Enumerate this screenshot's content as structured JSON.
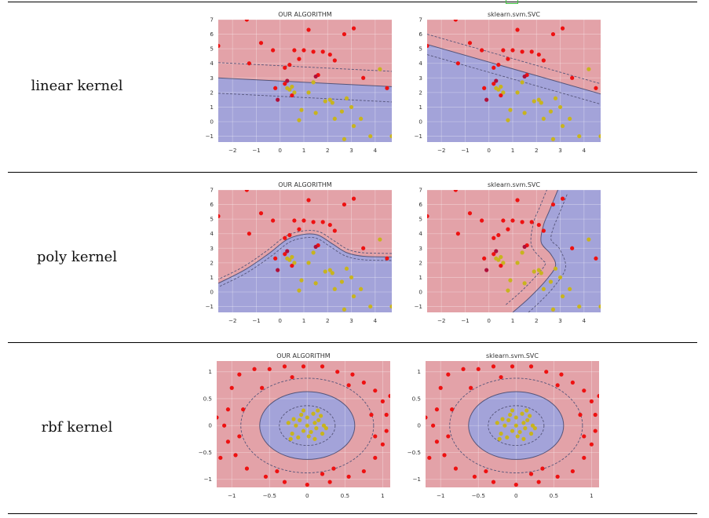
{
  "rows": [
    {
      "label": "linear kernel"
    },
    {
      "label": "poly kernel"
    },
    {
      "label": "rbf kernel"
    }
  ],
  "colors": {
    "red_region": "#e3a2a8",
    "blue_region": "#a3a3d9",
    "red_point": "#ee1111",
    "yellow_point": "#c8b41e",
    "dark_point": "#b0103a",
    "grid": "#ffffff",
    "boundary": "#55557a"
  },
  "chart_data": [
    {
      "type": "scatter",
      "row": "linear kernel",
      "title": "OUR ALGORITHM",
      "kernel": "linear",
      "xlim": [
        -2.6,
        4.7
      ],
      "ylim": [
        -1.4,
        7
      ],
      "xticks": [
        -2,
        -1,
        0,
        1,
        2,
        3,
        4
      ],
      "yticks": [
        -1,
        0,
        1,
        2,
        3,
        4,
        5,
        6,
        7
      ],
      "decision_boundary": {
        "y_at_xmin": 3.0,
        "y_at_xmax": 2.4,
        "margin": 1.05
      }
    },
    {
      "type": "scatter",
      "row": "linear kernel",
      "title": "sklearn.svm.SVC",
      "kernel": "linear",
      "xlim": [
        -2.6,
        4.7
      ],
      "ylim": [
        -1.4,
        7
      ],
      "xticks": [
        -2,
        -1,
        0,
        1,
        2,
        3,
        4
      ],
      "yticks": [
        -1,
        0,
        1,
        2,
        3,
        4,
        5,
        6,
        7
      ],
      "decision_boundary": {
        "y_at_xmin": 5.3,
        "y_at_xmax": 1.9,
        "margin": 0.7
      }
    },
    {
      "type": "scatter",
      "row": "poly kernel",
      "title": "OUR ALGORITHM",
      "kernel": "poly",
      "xlim": [
        -2.6,
        4.7
      ],
      "ylim": [
        -1.4,
        7
      ],
      "xticks": [
        -2,
        -1,
        0,
        1,
        2,
        3,
        4
      ],
      "yticks": [
        -1,
        0,
        1,
        2,
        3,
        4,
        5,
        6,
        7
      ],
      "decision_boundary": {
        "points": [
          [
            -2.6,
            0.6
          ],
          [
            -1.5,
            1.5
          ],
          [
            -0.5,
            2.6
          ],
          [
            0.3,
            3.6
          ],
          [
            1.0,
            3.95
          ],
          [
            1.6,
            3.9
          ],
          [
            2.2,
            3.3
          ],
          [
            2.8,
            2.7
          ],
          [
            3.5,
            2.45
          ],
          [
            4.7,
            2.4
          ]
        ],
        "margin": 0.15
      }
    },
    {
      "type": "scatter",
      "row": "poly kernel",
      "title": "sklearn.svm.SVC",
      "kernel": "poly",
      "xlim": [
        -2.6,
        4.7
      ],
      "ylim": [
        -1.4,
        7
      ],
      "xticks": [
        -2,
        -1,
        0,
        1,
        2,
        3,
        4
      ],
      "yticks": [
        -1,
        0,
        1,
        2,
        3,
        4,
        5,
        6,
        7
      ],
      "decision_boundary": {
        "points": [
          [
            1.0,
            -1.4
          ],
          [
            1.7,
            -0.4
          ],
          [
            2.4,
            0.8
          ],
          [
            2.8,
            1.8
          ],
          [
            2.6,
            2.6
          ],
          [
            2.2,
            3.4
          ],
          [
            2.3,
            4.6
          ],
          [
            2.55,
            5.6
          ],
          [
            2.9,
            7.0
          ]
        ],
        "margin": 0.22
      }
    },
    {
      "type": "scatter",
      "row": "rbf kernel",
      "title": "OUR ALGORITHM",
      "kernel": "rbf",
      "xlim": [
        -1.2,
        1.1
      ],
      "ylim": [
        -1.15,
        1.2
      ],
      "xticks": [
        -1.0,
        -0.5,
        0.0,
        0.5,
        1.0
      ],
      "yticks": [
        -1.0,
        -0.5,
        0.0,
        0.5,
        1.0
      ],
      "decision_boundary": {
        "center": [
          0.0,
          0.0
        ],
        "inner_margin_radius": 0.37,
        "boundary_radius": 0.63,
        "outer_margin_radius": 0.88
      }
    },
    {
      "type": "scatter",
      "row": "rbf kernel",
      "title": "sklearn.svm.SVC",
      "kernel": "rbf",
      "xlim": [
        -1.2,
        1.1
      ],
      "ylim": [
        -1.15,
        1.2
      ],
      "xticks": [
        -1.0,
        -0.5,
        0.0,
        0.5,
        1.0
      ],
      "yticks": [
        -1.0,
        -0.5,
        0.0,
        0.5,
        1.0
      ],
      "decision_boundary": {
        "center": [
          0.0,
          0.0
        ],
        "inner_margin_radius": 0.37,
        "boundary_radius": 0.63,
        "outer_margin_radius": 0.88
      }
    }
  ],
  "point_sets": {
    "linear_poly": {
      "red": [
        [
          -2.6,
          5.2
        ],
        [
          -1.4,
          7.0
        ],
        [
          -1.3,
          4.0
        ],
        [
          -0.8,
          5.4
        ],
        [
          -0.3,
          4.9
        ],
        [
          0.2,
          3.7
        ],
        [
          0.4,
          3.9
        ],
        [
          0.6,
          4.9
        ],
        [
          0.8,
          4.3
        ],
        [
          1.0,
          4.9
        ],
        [
          1.2,
          6.3
        ],
        [
          1.4,
          4.8
        ],
        [
          1.6,
          3.2
        ],
        [
          1.8,
          4.8
        ],
        [
          2.1,
          4.6
        ],
        [
          2.3,
          4.2
        ],
        [
          2.7,
          6.0
        ],
        [
          3.1,
          6.4
        ],
        [
          3.5,
          3.0
        ],
        [
          4.5,
          2.3
        ],
        [
          0.2,
          2.6
        ],
        [
          0.5,
          1.8
        ],
        [
          -0.2,
          2.3
        ]
      ],
      "yellow": [
        [
          0.3,
          2.3
        ],
        [
          0.5,
          2.4
        ],
        [
          0.4,
          2.2
        ],
        [
          0.6,
          2.0
        ],
        [
          0.9,
          0.8
        ],
        [
          0.8,
          0.1
        ],
        [
          1.2,
          2.0
        ],
        [
          1.4,
          2.7
        ],
        [
          1.5,
          0.6
        ],
        [
          1.9,
          1.4
        ],
        [
          2.1,
          1.5
        ],
        [
          2.2,
          1.3
        ],
        [
          2.3,
          0.2
        ],
        [
          2.6,
          0.7
        ],
        [
          2.8,
          1.6
        ],
        [
          3.0,
          1.0
        ],
        [
          3.1,
          -0.3
        ],
        [
          3.4,
          0.2
        ],
        [
          3.8,
          -1.0
        ],
        [
          2.7,
          -1.2
        ],
        [
          4.2,
          3.6
        ],
        [
          4.7,
          -1.0
        ]
      ],
      "dark": [
        [
          1.5,
          3.1
        ],
        [
          0.3,
          2.8
        ],
        [
          -0.1,
          1.5
        ]
      ]
    },
    "rbf": {
      "red": [
        [
          -1.0,
          0.7
        ],
        [
          -0.9,
          0.95
        ],
        [
          -0.7,
          1.05
        ],
        [
          -0.5,
          1.05
        ],
        [
          -0.3,
          1.1
        ],
        [
          -0.05,
          1.1
        ],
        [
          0.2,
          1.1
        ],
        [
          0.4,
          1.0
        ],
        [
          0.6,
          0.95
        ],
        [
          0.75,
          0.8
        ],
        [
          0.9,
          0.65
        ],
        [
          1.0,
          0.45
        ],
        [
          1.05,
          0.2
        ],
        [
          1.05,
          -0.1
        ],
        [
          1.0,
          -0.35
        ],
        [
          0.9,
          -0.6
        ],
        [
          0.75,
          -0.85
        ],
        [
          0.55,
          -0.95
        ],
        [
          0.3,
          -1.05
        ],
        [
          0.0,
          -1.1
        ],
        [
          -0.3,
          -1.05
        ],
        [
          -0.55,
          -0.95
        ],
        [
          -0.8,
          -0.8
        ],
        [
          -0.95,
          -0.55
        ],
        [
          -1.05,
          -0.3
        ],
        [
          -1.1,
          0.0
        ],
        [
          -1.05,
          0.3
        ],
        [
          -1.2,
          0.15
        ],
        [
          -0.9,
          -0.2
        ],
        [
          -0.85,
          0.3
        ],
        [
          0.85,
          0.2
        ],
        [
          0.9,
          -0.2
        ],
        [
          -0.6,
          0.7
        ],
        [
          0.55,
          0.75
        ],
        [
          -0.4,
          -0.85
        ],
        [
          0.35,
          -0.8
        ],
        [
          -1.15,
          -0.6
        ],
        [
          1.1,
          0.55
        ],
        [
          -0.2,
          0.9
        ],
        [
          0.2,
          -0.9
        ]
      ],
      "yellow": [
        [
          -0.1,
          0.1
        ],
        [
          0.0,
          0.15
        ],
        [
          0.1,
          0.05
        ],
        [
          -0.05,
          -0.1
        ],
        [
          0.05,
          -0.12
        ],
        [
          0.15,
          0.1
        ],
        [
          -0.15,
          0.0
        ],
        [
          0.12,
          -0.05
        ],
        [
          -0.08,
          0.2
        ],
        [
          0.2,
          -0.15
        ],
        [
          -0.2,
          -0.15
        ],
        [
          0.0,
          0.0
        ],
        [
          0.08,
          0.22
        ],
        [
          -0.18,
          0.12
        ],
        [
          0.18,
          0.18
        ],
        [
          0.02,
          -0.2
        ],
        [
          -0.12,
          -0.22
        ],
        [
          0.22,
          0.0
        ],
        [
          -0.25,
          0.05
        ],
        [
          0.1,
          -0.25
        ],
        [
          0.25,
          -0.05
        ],
        [
          -0.05,
          0.28
        ],
        [
          0.14,
          0.28
        ],
        [
          -0.22,
          -0.25
        ]
      ],
      "dark": []
    }
  }
}
